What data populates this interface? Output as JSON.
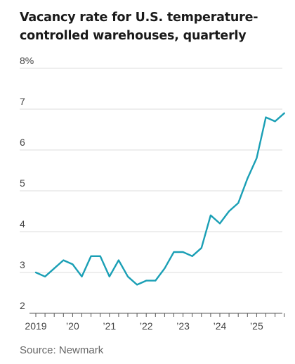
{
  "title": "Vacancy rate for U.S. temperature-controlled warehouses, quarterly",
  "source": "Source: Newmark",
  "chart_data": {
    "type": "line",
    "title": "Vacancy rate for U.S. temperature-controlled warehouses, quarterly",
    "xlabel": "",
    "ylabel": "",
    "ylim": [
      2,
      8
    ],
    "y_ticks": [
      2,
      3,
      4,
      5,
      6,
      7,
      8
    ],
    "y_tick_labels": [
      "2",
      "3",
      "4",
      "5",
      "6",
      "7",
      "8%"
    ],
    "x_tick_labels": [
      "2019",
      "’20",
      "’21",
      "’22",
      "’23",
      "’24",
      "’25"
    ],
    "grid": true,
    "series_color": "#1a9fb5",
    "series": [
      {
        "x": [
          "2019 Q1",
          "2019 Q2",
          "2019 Q3",
          "2019 Q4",
          "2020 Q1",
          "2020 Q2",
          "2020 Q3",
          "2020 Q4",
          "2021 Q1",
          "2021 Q2",
          "2021 Q3",
          "2021 Q4",
          "2022 Q1",
          "2022 Q2",
          "2022 Q3",
          "2022 Q4",
          "2023 Q1",
          "2023 Q2",
          "2023 Q3",
          "2023 Q4",
          "2024 Q1",
          "2024 Q2",
          "2024 Q3",
          "2024 Q4",
          "2025 Q1",
          "2025 Q2",
          "2025 Q3",
          "2025 Q4"
        ],
        "values": [
          3.0,
          2.9,
          3.1,
          3.3,
          3.2,
          2.9,
          3.4,
          3.4,
          2.9,
          3.3,
          2.9,
          2.7,
          2.8,
          2.8,
          3.1,
          3.5,
          3.5,
          3.4,
          3.6,
          4.4,
          4.2,
          4.5,
          4.7,
          5.3,
          5.8,
          6.8,
          6.7,
          6.9
        ]
      }
    ]
  }
}
